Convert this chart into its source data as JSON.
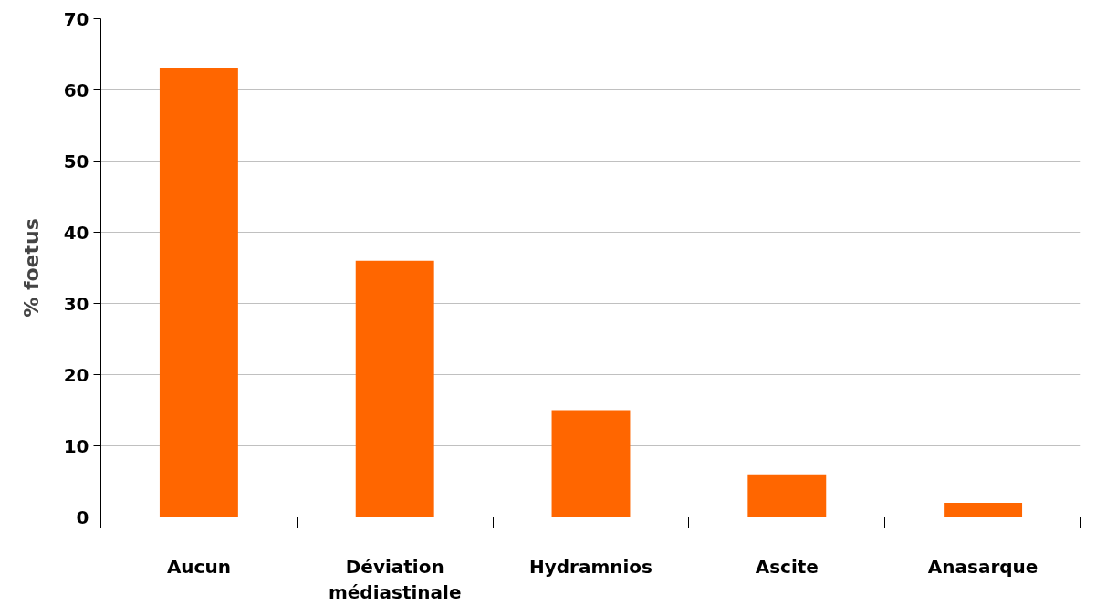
{
  "chart_data": {
    "type": "bar",
    "ylabel": "% foetus",
    "categories": [
      "Aucun",
      "Déviation médiastinale",
      "Hydramnios",
      "Ascite",
      "Anasarque"
    ],
    "series": [
      {
        "color": "#ff6600",
        "values": [
          63,
          36,
          15,
          6,
          2
        ]
      }
    ],
    "ylim": [
      0,
      70
    ],
    "yticks": [
      0,
      10,
      20,
      30,
      40,
      50,
      60,
      70
    ],
    "grid": "y"
  }
}
